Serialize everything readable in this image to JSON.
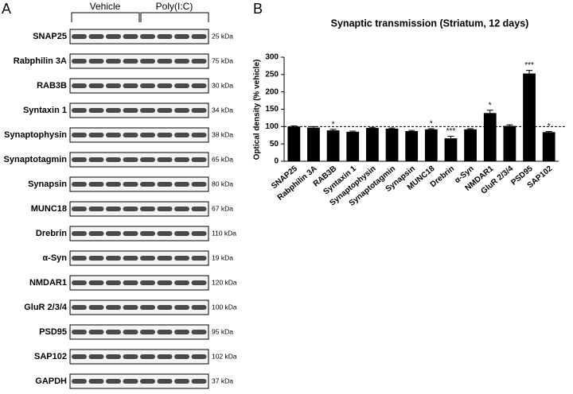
{
  "blots": {
    "panel_label": "A",
    "groups": [
      "Vehicle",
      "Poly(I:C)"
    ],
    "rows": [
      {
        "label": "SNAP25",
        "size": "25 kDa"
      },
      {
        "label": "Rabphilin 3A",
        "size": "75 kDa"
      },
      {
        "label": "RAB3B",
        "size": "30 kDa"
      },
      {
        "label": "Syntaxin 1",
        "size": "34 kDa"
      },
      {
        "label": "Synaptophysin",
        "size": "38 kDa"
      },
      {
        "label": "Synaptotagmin",
        "size": "65 kDa"
      },
      {
        "label": "Synapsin",
        "size": "80 kDa"
      },
      {
        "label": "MUNC18",
        "size": "67 kDa"
      },
      {
        "label": "Drebrin",
        "size": "110 kDa"
      },
      {
        "label": "α-Syn",
        "size": "19 kDa"
      },
      {
        "label": "NMDAR1",
        "size": "120 kDa"
      },
      {
        "label": "GluR 2/3/4",
        "size": "100 kDa"
      },
      {
        "label": "PSD95",
        "size": "95 kDa"
      },
      {
        "label": "SAP102",
        "size": "102 kDa"
      },
      {
        "label": "GAPDH",
        "size": "37 kDa"
      }
    ]
  },
  "chart_data": {
    "type": "bar",
    "panel_label": "B",
    "title": "Synaptic transmission (Striatum, 12 days)",
    "y_label": "Optical density (% vehicle)",
    "categories": [
      "SNAP25",
      "Rabphilin 3A",
      "RAB3B",
      "Syntaxin 1",
      "Synaptophysin",
      "Synaptotagmin",
      "Synapsin",
      "MUNC18",
      "Drebrin",
      "α-Syn",
      "NMDAR1",
      "GluR 2/3/4",
      "PSD95",
      "SAP102"
    ],
    "values": [
      100,
      97,
      89,
      85,
      96,
      94,
      87,
      92,
      66,
      92,
      139,
      102,
      253,
      84
    ],
    "errors": [
      2,
      3,
      3,
      2,
      2,
      2,
      2,
      2,
      6,
      2,
      8,
      3,
      9,
      2
    ],
    "significance": [
      null,
      null,
      "*",
      null,
      null,
      null,
      null,
      "*",
      "***",
      null,
      "*",
      null,
      "***",
      "*"
    ],
    "reference_line": 100,
    "color": "#000000",
    "ylim": [
      0,
      300
    ],
    "yticks": [
      0,
      50,
      100,
      150,
      200,
      250,
      300
    ]
  }
}
